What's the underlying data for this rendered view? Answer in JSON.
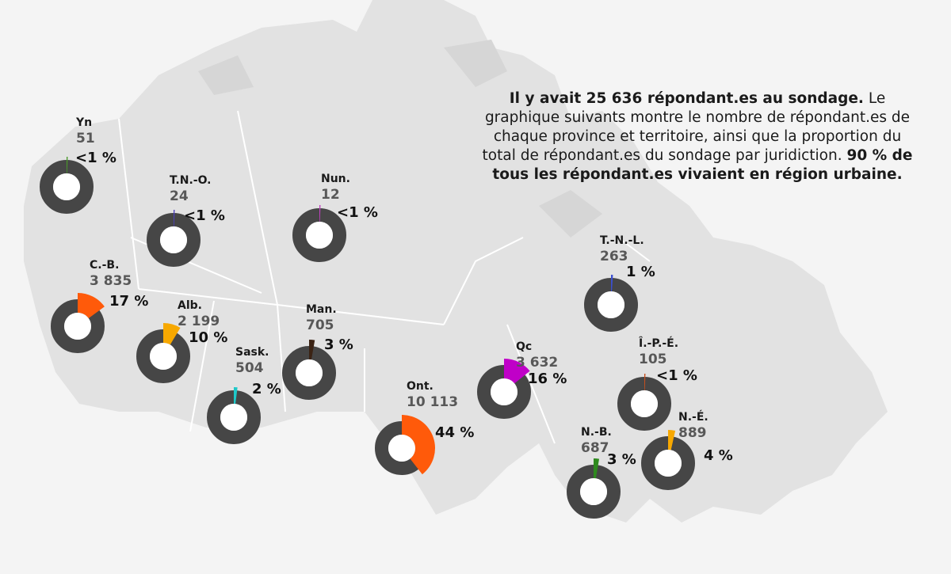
{
  "intro": {
    "bold_lead": "Il y avait 25 636 répondant.es au sondage.",
    "body": " Le graphique suivants montre le nombre de répondant.es de chaque province et territoire, ainsi que la proportion du total de répondant.es du sondage par juridiction. ",
    "bold_tail": "90 % de tous les répondant.es vivaient en région urbaine."
  },
  "colors": {
    "ring": "#464646",
    "land": "#e2e2e2",
    "land_border": "#ffffff",
    "background": "#f4f4f4"
  },
  "chart_data": {
    "type": "pie",
    "total": 25636,
    "regions": [
      {
        "id": "yn",
        "abbr": "Yn",
        "count": "51",
        "value": 51,
        "pct_label": "<1 %",
        "color": "#4a9a2a"
      },
      {
        "id": "tno",
        "abbr": "T.N.-O.",
        "count": "24",
        "value": 24,
        "pct_label": "<1 %",
        "color": "#4b3fbf"
      },
      {
        "id": "nun",
        "abbr": "Nun.",
        "count": "12",
        "value": 12,
        "pct_label": "<1 %",
        "color": "#c040c0"
      },
      {
        "id": "cb",
        "abbr": "C.-B.",
        "count": "3 835",
        "value": 3835,
        "pct_label": "17 %",
        "color": "#ff5a0a"
      },
      {
        "id": "alb",
        "abbr": "Alb.",
        "count": "2 199",
        "value": 2199,
        "pct_label": "10 %",
        "color": "#f7a800"
      },
      {
        "id": "sask",
        "abbr": "Sask.",
        "count": "504",
        "value": 504,
        "pct_label": "2 %",
        "color": "#1ec8c8"
      },
      {
        "id": "man",
        "abbr": "Man.",
        "count": "705",
        "value": 705,
        "pct_label": "3 %",
        "color": "#3b2314"
      },
      {
        "id": "ont",
        "abbr": "Ont.",
        "count": "10 113",
        "value": 10113,
        "pct_label": "44 %",
        "color": "#ff5a0a"
      },
      {
        "id": "qc",
        "abbr": "Qc",
        "count": "3 632",
        "value": 3632,
        "pct_label": "16 %",
        "color": "#c000c8"
      },
      {
        "id": "tnl",
        "abbr": "T.-N.-L.",
        "count": "263",
        "value": 263,
        "pct_label": "1 %",
        "color": "#3b4fd0"
      },
      {
        "id": "ipe",
        "abbr": "Î.-P.-É.",
        "count": "105",
        "value": 105,
        "pct_label": "<1 %",
        "color": "#c8501e"
      },
      {
        "id": "nb",
        "abbr": "N.-B.",
        "count": "687",
        "value": 687,
        "pct_label": "3 %",
        "color": "#2e8a1e"
      },
      {
        "id": "ne",
        "abbr": "N.-É.",
        "count": "889",
        "value": 889,
        "pct_label": "4 %",
        "color": "#f7a800"
      }
    ]
  }
}
